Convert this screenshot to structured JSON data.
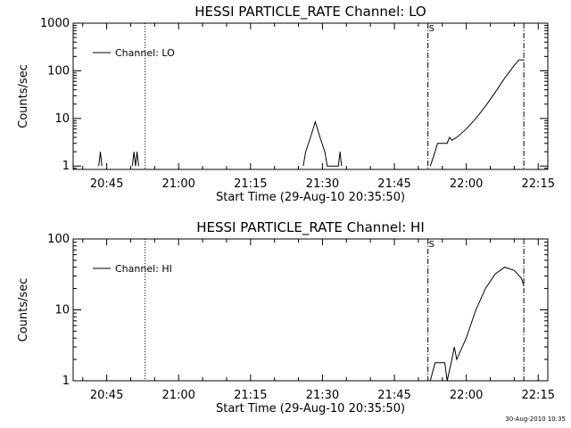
{
  "footer": {
    "stamp": "30-Aug-2010 10:35"
  },
  "chart_data": [
    {
      "type": "line",
      "title": "HESSI PARTICLE_RATE Channel: LO",
      "xlabel": "Start Time (29-Aug-10 20:35:50)",
      "ylabel": "Counts/sec",
      "yscale": "log",
      "xlim": [
        "20:38",
        "22:17"
      ],
      "ylim": [
        0.85,
        1000
      ],
      "xticks": [
        "20:45",
        "21:00",
        "21:15",
        "21:30",
        "21:45",
        "22:00",
        "22:15"
      ],
      "yticks": [
        "1",
        "10",
        "100",
        "1000"
      ],
      "legend": {
        "entries": [
          "Channel: LO"
        ],
        "placement": "top-left"
      },
      "markers": [
        {
          "time": "20:53",
          "style": "dotted",
          "label": ""
        },
        {
          "time": "21:52",
          "style": "dash-dot",
          "label": "S"
        },
        {
          "time": "22:12",
          "style": "dash-dot",
          "label": ""
        }
      ],
      "series": [
        {
          "name": "Channel: LO",
          "points": [
            [
              "20:43:20",
              1
            ],
            [
              "20:43:40",
              2
            ],
            [
              "20:44:00",
              1
            ],
            [
              "20:50:20",
              1
            ],
            [
              "20:50:40",
              2
            ],
            [
              "20:51:00",
              1
            ],
            [
              "20:51:20",
              2
            ],
            [
              "20:51:40",
              1
            ],
            [
              "21:26:00",
              1
            ],
            [
              "21:26:30",
              2
            ],
            [
              "21:27:30",
              4
            ],
            [
              "21:28:30",
              8.5
            ],
            [
              "21:29:30",
              4
            ],
            [
              "21:30:30",
              2
            ],
            [
              "21:31:00",
              1
            ],
            [
              "21:33:20",
              1
            ],
            [
              "21:33:40",
              2
            ],
            [
              "21:34:00",
              1
            ],
            [
              "21:52:30",
              1
            ],
            [
              "21:53:30",
              2
            ],
            [
              "21:54:00",
              3
            ],
            [
              "21:56:00",
              3
            ],
            [
              "21:56:30",
              4
            ],
            [
              "21:57:00",
              3.5
            ],
            [
              "21:58:00",
              4
            ],
            [
              "22:00:00",
              6
            ],
            [
              "22:02:00",
              10
            ],
            [
              "22:04:00",
              18
            ],
            [
              "22:06:00",
              35
            ],
            [
              "22:08:00",
              70
            ],
            [
              "22:10:00",
              130
            ],
            [
              "22:11:00",
              170
            ],
            [
              "22:12:00",
              170
            ]
          ]
        }
      ]
    },
    {
      "type": "line",
      "title": "HESSI PARTICLE_RATE Channel: HI",
      "xlabel": "Start Time (29-Aug-10 20:35:50)",
      "ylabel": "Counts/sec",
      "yscale": "log",
      "xlim": [
        "20:38",
        "22:17"
      ],
      "ylim": [
        1,
        100
      ],
      "xticks": [
        "20:45",
        "21:00",
        "21:15",
        "21:30",
        "21:45",
        "22:00",
        "22:15"
      ],
      "yticks": [
        "1",
        "10",
        "100"
      ],
      "legend": {
        "entries": [
          "Channel: HI"
        ],
        "placement": "top-left"
      },
      "markers": [
        {
          "time": "20:53",
          "style": "dotted",
          "label": ""
        },
        {
          "time": "21:52",
          "style": "dash-dot",
          "label": "S"
        },
        {
          "time": "22:12",
          "style": "dash-dot",
          "label": ""
        }
      ],
      "series": [
        {
          "name": "Channel: HI",
          "points": [
            [
              "21:52:30",
              1
            ],
            [
              "21:53:30",
              1.8
            ],
            [
              "21:55:30",
              1.8
            ],
            [
              "21:56:00",
              1
            ],
            [
              "21:57:00",
              2
            ],
            [
              "21:57:30",
              3
            ],
            [
              "21:58:00",
              2
            ],
            [
              "22:00:00",
              4
            ],
            [
              "22:02:00",
              10
            ],
            [
              "22:04:00",
              20
            ],
            [
              "22:06:00",
              32
            ],
            [
              "22:08:00",
              40
            ],
            [
              "22:10:00",
              36
            ],
            [
              "22:11:30",
              28
            ],
            [
              "22:12:00",
              22
            ]
          ]
        }
      ]
    }
  ]
}
